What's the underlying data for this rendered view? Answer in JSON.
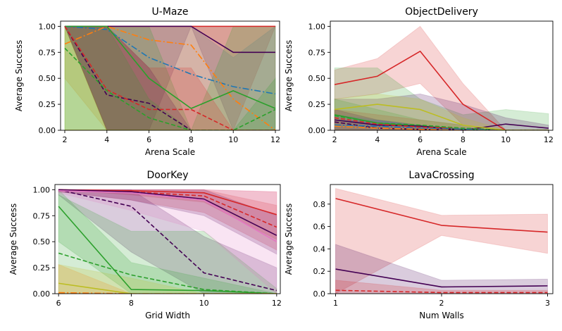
{
  "chart_data": [
    {
      "type": "line",
      "title": "U-Maze",
      "xlabel": "Arena Scale",
      "ylabel": "Average Success",
      "x": [
        2,
        4,
        6,
        8,
        10,
        12
      ],
      "xticks": [
        "2",
        "4",
        "6",
        "8",
        "10",
        "12"
      ],
      "yticks": [
        "0.00",
        "0.25",
        "0.50",
        "0.75",
        "1.00"
      ],
      "xlim": [
        1.8,
        12.2
      ],
      "ylim": [
        0,
        1.05
      ],
      "series": [
        {
          "name": "red solid",
          "color": "#d62728",
          "dash": "solid",
          "values": [
            1.0,
            1.0,
            1.0,
            1.0,
            1.0,
            1.0
          ],
          "lower": [
            1.0,
            0.0,
            0.0,
            0.0,
            0.0,
            1.0
          ],
          "upper": [
            1.0,
            1.0,
            1.0,
            1.0,
            1.0,
            1.0
          ]
        },
        {
          "name": "purple solid",
          "color": "#440154",
          "dash": "solid",
          "values": [
            1.0,
            1.0,
            1.0,
            1.0,
            0.75,
            0.75
          ],
          "lower": [
            1.0,
            0.0,
            0.0,
            1.0,
            0.0,
            0.0
          ],
          "upper": [
            1.0,
            1.0,
            1.0,
            1.0,
            1.0,
            1.0
          ]
        },
        {
          "name": "blue dashdot",
          "color": "#1f77b4",
          "dash": "dashdot",
          "values": [
            1.0,
            0.97,
            0.7,
            0.54,
            0.42,
            0.35
          ],
          "lower": [
            1.0,
            0.0,
            0.0,
            0.0,
            0.0,
            0.0
          ],
          "upper": [
            1.0,
            1.0,
            1.0,
            1.0,
            0.7,
            1.0
          ]
        },
        {
          "name": "orange dashdot",
          "color": "#ff7f0e",
          "dash": "dashdot",
          "values": [
            0.83,
            1.0,
            0.87,
            0.82,
            0.3,
            0.0
          ],
          "lower": [
            0.5,
            0.0,
            0.0,
            0.0,
            0.0,
            0.0
          ],
          "upper": [
            1.0,
            1.0,
            1.0,
            1.0,
            1.0,
            1.0
          ]
        },
        {
          "name": "green solid",
          "color": "#2ca02c",
          "dash": "solid",
          "values": [
            1.0,
            1.0,
            0.5,
            0.21,
            0.38,
            0.21
          ],
          "lower": [
            0.0,
            0.0,
            0.0,
            0.0,
            0.0,
            0.0
          ],
          "upper": [
            1.0,
            1.0,
            1.0,
            0.0,
            1.0,
            1.0
          ]
        },
        {
          "name": "purple dashed",
          "color": "#440154",
          "dash": "dashed",
          "values": [
            1.0,
            0.34,
            0.26,
            0.0,
            0.0,
            0.0
          ],
          "lower": [
            1.0,
            0.0,
            0.0,
            0.0,
            0.0,
            0.0
          ],
          "upper": [
            1.0,
            1.0,
            0.6,
            0.0,
            0.0,
            0.0
          ]
        },
        {
          "name": "red dashed",
          "color": "#d62728",
          "dash": "dashed",
          "values": [
            1.0,
            0.39,
            0.2,
            0.2,
            0.0,
            0.0
          ],
          "lower": [
            1.0,
            0.0,
            0.0,
            0.0,
            0.0,
            0.0
          ],
          "upper": [
            1.0,
            1.0,
            0.6,
            0.6,
            0.0,
            0.0
          ]
        },
        {
          "name": "green dashed",
          "color": "#2ca02c",
          "dash": "dashed",
          "values": [
            0.79,
            0.38,
            0.12,
            0.0,
            0.0,
            0.2
          ],
          "lower": [
            0.0,
            0.0,
            0.0,
            0.0,
            0.0,
            0.0
          ],
          "upper": [
            1.0,
            1.0,
            0.3,
            0.0,
            0.0,
            0.5
          ]
        },
        {
          "name": "gold",
          "color": "#bcbd22",
          "dash": "solid",
          "values": [
            0.0,
            0.0,
            0.0,
            0.0,
            0.0,
            0.0
          ],
          "lower": [
            0.0,
            0.0,
            0.0,
            0.0,
            0.0,
            0.0
          ],
          "upper": [
            1.0,
            0.0,
            0.0,
            0.0,
            0.0,
            0.0
          ]
        }
      ]
    },
    {
      "type": "line",
      "title": "ObjectDelivery",
      "xlabel": "Arena Scale",
      "ylabel": "Average Success",
      "x": [
        2,
        4,
        6,
        8,
        10,
        12
      ],
      "xticks": [
        "2",
        "4",
        "6",
        "8",
        "10",
        "12"
      ],
      "yticks": [
        "0.00",
        "0.25",
        "0.50",
        "0.75",
        "1.00"
      ],
      "xlim": [
        1.8,
        12.2
      ],
      "ylim": [
        0,
        1.05
      ],
      "series": [
        {
          "name": "red solid",
          "color": "#d62728",
          "dash": "solid",
          "values": [
            0.44,
            0.52,
            0.76,
            0.25,
            0.0,
            0.0
          ],
          "lower": [
            0.3,
            0.35,
            0.45,
            0.05,
            0.0,
            0.0
          ],
          "upper": [
            0.58,
            0.69,
            1.0,
            0.45,
            0.0,
            0.0
          ]
        },
        {
          "name": "green solid",
          "color": "#2ca02c",
          "dash": "solid",
          "values": [
            0.15,
            0.07,
            0.04,
            0.01,
            0.0,
            0.0
          ],
          "lower": [
            0.0,
            0.0,
            0.0,
            0.0,
            0.0,
            0.0
          ],
          "upper": [
            0.6,
            0.6,
            0.3,
            0.15,
            0.2,
            0.16
          ]
        },
        {
          "name": "purple solid",
          "color": "#440154",
          "dash": "solid",
          "values": [
            0.1,
            0.05,
            0.04,
            0.0,
            0.06,
            0.02
          ],
          "lower": [
            0.0,
            0.0,
            0.0,
            0.0,
            0.0,
            0.0
          ],
          "upper": [
            0.3,
            0.3,
            0.35,
            0.25,
            0.12,
            0.05
          ]
        },
        {
          "name": "red dashed",
          "color": "#d62728",
          "dash": "dashed",
          "values": [
            0.12,
            0.06,
            0.03,
            0.02,
            0.0,
            0.0
          ],
          "lower": [
            0.0,
            0.0,
            0.0,
            0.0,
            0.0,
            0.0
          ],
          "upper": [
            0.2,
            0.15,
            0.1,
            0.05,
            0.0,
            0.0
          ]
        },
        {
          "name": "green dashed",
          "color": "#2ca02c",
          "dash": "dashed",
          "values": [
            0.14,
            0.07,
            0.05,
            0.02,
            0.0,
            0.0
          ],
          "lower": [
            0.0,
            0.0,
            0.0,
            0.0,
            0.0,
            0.0
          ],
          "upper": [
            0.3,
            0.2,
            0.1,
            0.05,
            0.0,
            0.0
          ]
        },
        {
          "name": "purple dashed",
          "color": "#440154",
          "dash": "dashed",
          "values": [
            0.08,
            0.02,
            0.01,
            0.0,
            0.0,
            0.0
          ],
          "lower": [
            0.0,
            0.0,
            0.0,
            0.0,
            0.0,
            0.0
          ],
          "upper": [
            0.2,
            0.1,
            0.05,
            0.0,
            0.0,
            0.0
          ]
        },
        {
          "name": "blue dashdot",
          "color": "#1f77b4",
          "dash": "dashdot",
          "values": [
            0.05,
            0.04,
            0.02,
            0.01,
            0.0,
            0.0
          ],
          "lower": [
            0.0,
            0.0,
            0.0,
            0.0,
            0.0,
            0.0
          ],
          "upper": [
            0.15,
            0.1,
            0.05,
            0.02,
            0.0,
            0.0
          ]
        },
        {
          "name": "orange dashdot",
          "color": "#ff7f0e",
          "dash": "dashdot",
          "values": [
            0.04,
            0.02,
            0.01,
            0.0,
            0.0,
            0.0
          ],
          "lower": [
            0.0,
            0.0,
            0.0,
            0.0,
            0.0,
            0.0
          ],
          "upper": [
            0.1,
            0.05,
            0.02,
            0.0,
            0.0,
            0.0
          ]
        },
        {
          "name": "gold",
          "color": "#bcbd22",
          "dash": "solid",
          "values": [
            0.2,
            0.25,
            0.2,
            0.05,
            0.0,
            0.0
          ],
          "lower": [
            0.1,
            0.1,
            0.05,
            0.0,
            0.0,
            0.0
          ],
          "upper": [
            0.3,
            0.35,
            0.3,
            0.12,
            0.0,
            0.0
          ]
        }
      ]
    },
    {
      "type": "line",
      "title": "DoorKey",
      "xlabel": "Grid Width",
      "ylabel": "Average Success",
      "x": [
        6,
        8,
        10,
        12
      ],
      "xticks": [
        "6",
        "8",
        "10",
        "12"
      ],
      "yticks": [
        "0.00",
        "0.25",
        "0.50",
        "0.75",
        "1.00"
      ],
      "xlim": [
        5.9,
        12.1
      ],
      "ylim": [
        0,
        1.05
      ],
      "series": [
        {
          "name": "red solid",
          "color": "#d62728",
          "dash": "solid",
          "values": [
            1.0,
            0.99,
            0.97,
            0.76
          ],
          "lower": [
            1.0,
            0.95,
            0.88,
            0.52
          ],
          "upper": [
            1.0,
            1.0,
            1.0,
            0.98
          ]
        },
        {
          "name": "red dashed",
          "color": "#d62728",
          "dash": "dashed",
          "values": [
            1.0,
            0.98,
            0.94,
            0.64
          ],
          "lower": [
            0.98,
            0.9,
            0.78,
            0.42
          ],
          "upper": [
            1.0,
            1.0,
            1.0,
            0.85
          ]
        },
        {
          "name": "purple solid",
          "color": "#440154",
          "dash": "solid",
          "values": [
            1.0,
            0.98,
            0.91,
            0.56
          ],
          "lower": [
            0.98,
            0.9,
            0.75,
            0.38
          ],
          "upper": [
            1.0,
            1.0,
            1.0,
            0.75
          ]
        },
        {
          "name": "purple dashed",
          "color": "#440154",
          "dash": "dashed",
          "values": [
            1.0,
            0.84,
            0.2,
            0.03
          ],
          "lower": [
            0.95,
            0.4,
            0.0,
            0.0
          ],
          "upper": [
            1.0,
            1.0,
            0.55,
            0.25
          ]
        },
        {
          "name": "green solid",
          "color": "#2ca02c",
          "dash": "solid",
          "values": [
            0.84,
            0.04,
            0.03,
            0.0
          ],
          "lower": [
            0.5,
            0.0,
            0.0,
            0.0
          ],
          "upper": [
            1.0,
            0.3,
            0.15,
            0.0
          ]
        },
        {
          "name": "green dashed",
          "color": "#2ca02c",
          "dash": "dashed",
          "values": [
            0.39,
            0.18,
            0.04,
            0.0
          ],
          "lower": [
            0.0,
            0.0,
            0.0,
            0.0
          ],
          "upper": [
            0.95,
            0.6,
            0.6,
            0.05
          ]
        },
        {
          "name": "orange dashdot",
          "color": "#ff7f0e",
          "dash": "dashdot",
          "values": [
            0.01,
            0.0,
            0.0,
            0.0
          ],
          "lower": [
            0.0,
            0.0,
            0.0,
            0.0
          ],
          "upper": [
            0.28,
            0.0,
            0.0,
            0.0
          ]
        },
        {
          "name": "gold",
          "color": "#bcbd22",
          "dash": "solid",
          "values": [
            0.1,
            0.0,
            0.0,
            0.0
          ],
          "lower": [
            0.0,
            0.0,
            0.0,
            0.0
          ],
          "upper": [
            0.28,
            0.15,
            0.0,
            0.0
          ]
        },
        {
          "name": "pink band",
          "color": "#e377c2",
          "dash": "solid",
          "values": [
            0.99,
            0.97,
            0.9,
            0.5
          ],
          "lower": [
            0.97,
            0.8,
            0.6,
            0.0
          ],
          "upper": [
            1.0,
            1.0,
            1.0,
            0.98
          ]
        }
      ]
    },
    {
      "type": "line",
      "title": "LavaCrossing",
      "xlabel": "Num Walls",
      "ylabel": "Average Success",
      "x": [
        1,
        2,
        3
      ],
      "xticks": [
        "1",
        "2",
        "3"
      ],
      "yticks": [
        "0.0",
        "0.2",
        "0.4",
        "0.6",
        "0.8"
      ],
      "xlim": [
        0.95,
        3.05
      ],
      "ylim": [
        0,
        0.975
      ],
      "series": [
        {
          "name": "red solid",
          "color": "#d62728",
          "dash": "solid",
          "values": [
            0.85,
            0.61,
            0.55
          ],
          "lower": [
            0.0,
            0.52,
            0.36
          ],
          "upper": [
            0.94,
            0.7,
            0.71
          ]
        },
        {
          "name": "purple solid",
          "color": "#440154",
          "dash": "solid",
          "values": [
            0.22,
            0.06,
            0.07
          ],
          "lower": [
            0.0,
            0.0,
            0.0
          ],
          "upper": [
            0.44,
            0.12,
            0.13
          ]
        },
        {
          "name": "red dashed",
          "color": "#d62728",
          "dash": "dashed",
          "values": [
            0.03,
            0.01,
            0.01
          ],
          "lower": [
            0.0,
            0.0,
            0.0
          ],
          "upper": [
            0.12,
            0.03,
            0.03
          ]
        }
      ]
    }
  ]
}
